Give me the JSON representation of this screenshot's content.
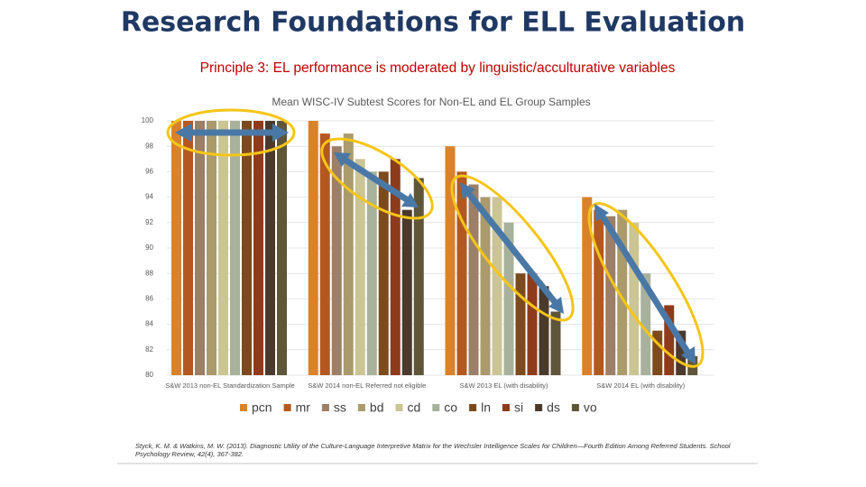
{
  "slide": {
    "title": "Research Foundations for ELL Evaluation",
    "subtitle": "Principle 3: EL performance is moderated by linguistic/acculturative variables",
    "citation": "Styck, K. M. & Watkins, M. W. (2013). Diagnostic Utility of the Culture-Language Interpretive Matrix for the Wechsler Intelligence Scales for Children—Fourth Edition Among Referred Students. School Psychology Review, 42(4), 367-382."
  },
  "chart_data": {
    "type": "bar",
    "title": "Mean WISC-IV Subtest Scores for Non-EL and EL Group Samples",
    "categories": [
      "S&W 2013 non-EL Standardization Sample",
      "S&W 2014 non-EL Referred not eligible",
      "S&W 2013 EL (with disability)",
      "S&W 2014 EL (with disability)"
    ],
    "series": [
      {
        "name": "pcn",
        "color": "#d9822b",
        "values": [
          100,
          100,
          98,
          94
        ]
      },
      {
        "name": "mr",
        "color": "#b5581f",
        "values": [
          100,
          99,
          96,
          93
        ]
      },
      {
        "name": "ss",
        "color": "#9c7f68",
        "values": [
          100,
          98,
          95,
          92.5
        ]
      },
      {
        "name": "bd",
        "color": "#ab9b6c",
        "values": [
          100,
          99,
          94,
          93
        ]
      },
      {
        "name": "cd",
        "color": "#cbc595",
        "values": [
          100,
          97,
          94,
          92
        ]
      },
      {
        "name": "co",
        "color": "#a8b19b",
        "values": [
          100,
          96,
          92,
          88
        ]
      },
      {
        "name": "ln",
        "color": "#7d4a1d",
        "values": [
          100,
          96,
          88,
          83.5
        ]
      },
      {
        "name": "si",
        "color": "#8e3b1b",
        "values": [
          100,
          97,
          88,
          85.5
        ]
      },
      {
        "name": "ds",
        "color": "#4b3a2b",
        "values": [
          100,
          93,
          87,
          83.5
        ]
      },
      {
        "name": "vo",
        "color": "#5f5538",
        "values": [
          100,
          95.5,
          85,
          81.5
        ]
      }
    ],
    "ylim": [
      80,
      100
    ],
    "yticks": [
      80,
      82,
      84,
      86,
      88,
      90,
      92,
      94,
      96,
      98,
      100
    ],
    "grid": true
  }
}
